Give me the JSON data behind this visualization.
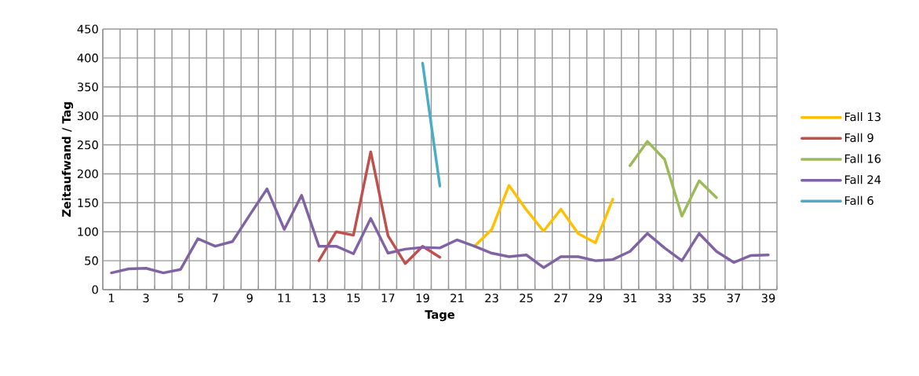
{
  "chart_data": {
    "type": "line",
    "xlabel": "Tage",
    "ylabel": "Zeitaufwand / Tag",
    "categories": [
      "1",
      null,
      "3",
      null,
      "5",
      null,
      "7",
      null,
      "9",
      null,
      "11",
      null,
      "13",
      null,
      "15",
      null,
      "17",
      null,
      "19",
      null,
      "21",
      null,
      "23",
      null,
      "25",
      null,
      "27",
      null,
      "29",
      null,
      "31",
      null,
      "33",
      null,
      "35",
      null,
      "37",
      null,
      "39"
    ],
    "series": [
      {
        "name": "Fall 13",
        "color": "#ffc000",
        "values": [
          null,
          null,
          null,
          null,
          null,
          null,
          null,
          null,
          null,
          null,
          null,
          null,
          null,
          null,
          null,
          null,
          null,
          null,
          null,
          null,
          null,
          75,
          104,
          180,
          138,
          101,
          139,
          97,
          81,
          156,
          null,
          null,
          null,
          null,
          null,
          null,
          null,
          null,
          null
        ]
      },
      {
        "name": "Fall 9",
        "color": "#c0504d",
        "values": [
          null,
          null,
          null,
          null,
          null,
          null,
          null,
          null,
          null,
          null,
          null,
          null,
          50,
          100,
          94,
          238,
          93,
          45,
          75,
          56,
          null,
          null,
          null,
          null,
          null,
          null,
          null,
          null,
          null,
          null,
          null,
          null,
          null,
          null,
          null,
          null,
          null,
          null,
          null
        ]
      },
      {
        "name": "Fall 16",
        "color": "#9bbb59",
        "values": [
          null,
          null,
          null,
          null,
          null,
          null,
          null,
          null,
          null,
          null,
          null,
          null,
          null,
          null,
          null,
          null,
          null,
          null,
          null,
          null,
          null,
          null,
          null,
          null,
          null,
          null,
          null,
          null,
          null,
          null,
          214,
          256,
          225,
          127,
          188,
          159,
          null,
          null,
          null
        ]
      },
      {
        "name": "Fall 24",
        "color": "#8064a2",
        "values": [
          29,
          36,
          37,
          29,
          35,
          88,
          75,
          83,
          129,
          174,
          104,
          163,
          75,
          75,
          62,
          123,
          63,
          70,
          73,
          72,
          86,
          75,
          63,
          57,
          60,
          38,
          57,
          57,
          50,
          52,
          66,
          97,
          72,
          50,
          97,
          66,
          47,
          59,
          60
        ]
      },
      {
        "name": "Fall 6",
        "color": "#4bacc6",
        "values": [
          null,
          null,
          null,
          null,
          null,
          null,
          null,
          null,
          null,
          null,
          null,
          null,
          null,
          null,
          null,
          null,
          null,
          null,
          391,
          179,
          null,
          null,
          null,
          null,
          null,
          null,
          null,
          null,
          null,
          null,
          null,
          null,
          null,
          null,
          null,
          null,
          null,
          null,
          null
        ]
      }
    ],
    "ylim": [
      0,
      450
    ],
    "yticks": [
      0,
      50,
      100,
      150,
      200,
      250,
      300,
      350,
      400,
      450
    ],
    "grid": true,
    "legend": "right",
    "marker": "none",
    "line_style": "solid"
  }
}
